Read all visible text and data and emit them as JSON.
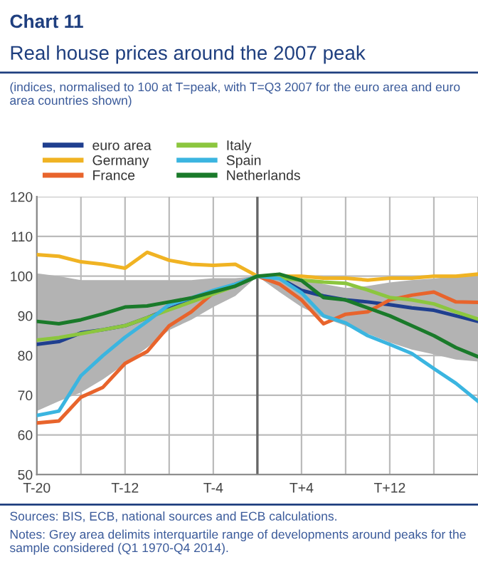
{
  "chart_data": {
    "type": "line",
    "title": "Chart 11",
    "subtitle": "Real house prices around the 2007 peak",
    "annotations": [
      "(indices, normalised to 100 at T=peak, with T=Q3 2007 for the euro area and euro area countries shown)",
      "Sources: BIS, ECB, national sources and ECB calculations.",
      "Notes: Grey area delimits interquartile range of developments around peaks for the sample considered (Q1 1970-Q4 2014)."
    ],
    "categories": [
      "T-20",
      null,
      null,
      null,
      "T-12",
      null,
      null,
      null,
      "T-4",
      null,
      null,
      null,
      "T+4",
      null,
      null,
      null,
      "T+12",
      null,
      null,
      null,
      null
    ],
    "series": [
      {
        "name": "euro area",
        "color": "#1f3f8f",
        "values": [
          82.8,
          83.5,
          85.7,
          86.5,
          87.5,
          89.5,
          91.7,
          94,
          95.8,
          97.5,
          100,
          99.5,
          96.4,
          95,
          94,
          93.5,
          92.8,
          92,
          91.4,
          90,
          88.6
        ],
        "lower": [
          66,
          68.5,
          70.7,
          74,
          77.9,
          82,
          86.4,
          89,
          92.2,
          95,
          100,
          96,
          92.2,
          89.5,
          87.5,
          85.5,
          83.3,
          81.5,
          80.3,
          79,
          78.5
        ],
        "upper": [
          100.7,
          100,
          99,
          99,
          99,
          99,
          99,
          99,
          99.5,
          99.5,
          100,
          99.8,
          99.4,
          98,
          97,
          97.5,
          98.4,
          99,
          99.4,
          100,
          100
        ]
      },
      {
        "name": "Germany",
        "color": "#f0b323",
        "values": [
          105.4,
          105,
          103.6,
          103,
          102,
          106,
          104,
          103,
          102.7,
          103,
          100,
          100,
          100,
          99.5,
          99.5,
          99,
          99.5,
          99.5,
          100,
          100,
          100.5
        ]
      },
      {
        "name": "France",
        "color": "#e8642c",
        "values": [
          63,
          63.5,
          69.5,
          72,
          78,
          81,
          87.5,
          91,
          95.8,
          98,
          100,
          98,
          94,
          88,
          90.4,
          91,
          94,
          95.2,
          96,
          93.5,
          93.4
        ]
      },
      {
        "name": "Italy",
        "color": "#8cc63f",
        "values": [
          83.9,
          84.5,
          85.5,
          86.5,
          87.5,
          89.5,
          91.5,
          93.5,
          95.5,
          97.5,
          100,
          99.5,
          99,
          98.5,
          98.2,
          96.5,
          94.6,
          94,
          93,
          91,
          89.2
        ]
      },
      {
        "name": "Spain",
        "color": "#3bb5e0",
        "values": [
          64.9,
          66,
          74.9,
          80,
          84.6,
          88.6,
          92.8,
          94.5,
          96.4,
          98,
          100,
          99.4,
          95.8,
          90,
          88.2,
          85,
          82.8,
          80.5,
          76.7,
          73,
          68.5
        ]
      },
      {
        "name": "Netherlands",
        "color": "#1a7a2a",
        "values": [
          88.6,
          88,
          89,
          90.5,
          92.2,
          92.5,
          93.5,
          94.5,
          96,
          97.5,
          100,
          100.5,
          98.9,
          94.6,
          94,
          92,
          90,
          87.5,
          85,
          82,
          79.7
        ]
      }
    ],
    "ylim": [
      50,
      120
    ],
    "yticks": [
      50,
      60,
      70,
      80,
      90,
      100,
      110,
      120
    ],
    "grid": true,
    "legend": "top left",
    "marker": "none",
    "line_style": "solid"
  }
}
